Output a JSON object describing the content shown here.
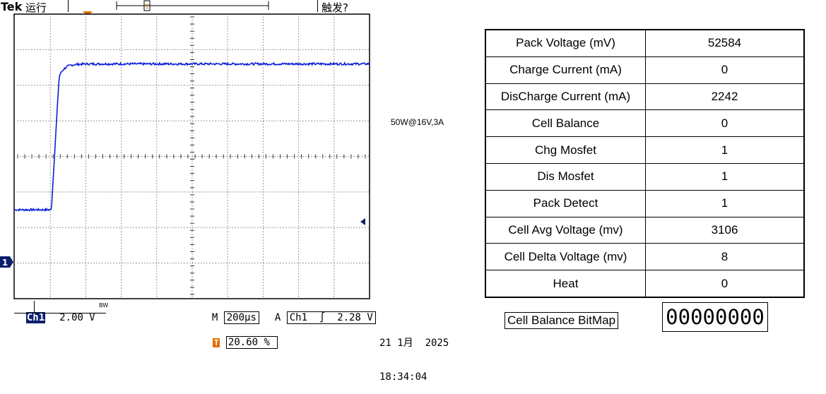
{
  "scope": {
    "brand": "Tek",
    "run_state": "运行",
    "trigger_status": "触发?",
    "trigger_marker": "T",
    "channel_marker": "1",
    "channel": "Ch1",
    "volts_per_div": "2.00 V",
    "bw_limit": "BW",
    "time_label": "M",
    "time_per_div": "200µs",
    "trigger_mode": "A",
    "trigger_source": "Ch1",
    "trigger_slope": "∫",
    "trigger_level": "2.28 V",
    "trigger_position": "20.60 %",
    "date": "21 1月  2025",
    "time": "18:34:04",
    "trace_color": "#0b1fd6",
    "waveform": {
      "low_level_div": -1.5,
      "high_level_div": 2.6,
      "rise_start_time_div": 1.03,
      "rise_end_time_div": 1.62
    }
  },
  "annotation": "50W@16V,3A",
  "table": {
    "rows": [
      {
        "label": "Pack Voltage (mV)",
        "value": "52584"
      },
      {
        "label": "Charge Current (mA)",
        "value": "0"
      },
      {
        "label": "DisCharge Current (mA)",
        "value": "2242"
      },
      {
        "label": "Cell Balance",
        "value": "0"
      },
      {
        "label": "Chg Mosfet",
        "value": "1"
      },
      {
        "label": "Dis Mosfet",
        "value": "1"
      },
      {
        "label": "Pack Detect",
        "value": "1"
      },
      {
        "label": "Cell Avg Voltage (mv)",
        "value": "3106"
      },
      {
        "label": "Cell Delta Voltage (mv)",
        "value": "8"
      },
      {
        "label": "Heat",
        "value": "0"
      }
    ]
  },
  "bitmap": {
    "label": "Cell Balance BitMap",
    "value": "00000000"
  }
}
